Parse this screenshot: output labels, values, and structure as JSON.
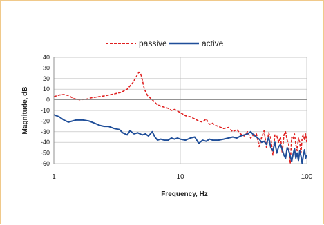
{
  "chart_data": {
    "type": "line",
    "xscale": "log",
    "xlim": [
      1,
      100
    ],
    "ylim": [
      -60,
      40
    ],
    "xlabel": "Frequency, Hz",
    "ylabel": "Magnitude, dB",
    "xticks": [
      "1",
      "10",
      "100"
    ],
    "yticks": [
      "40",
      "30",
      "20",
      "10",
      "0",
      "-10",
      "-20",
      "-30",
      "-40",
      "-50",
      "-60"
    ],
    "legend_position": "top",
    "grid": "major x and y",
    "series": [
      {
        "name": "passive",
        "color": "#e02020",
        "style": "dashed",
        "x": [
          1,
          1.1,
          1.2,
          1.3,
          1.45,
          1.6,
          1.8,
          2,
          2.3,
          2.6,
          3,
          3.4,
          3.8,
          4.2,
          4.5,
          4.7,
          4.85,
          5,
          5.2,
          5.5,
          6,
          6.5,
          7,
          7.5,
          8,
          8.5,
          9,
          10,
          11,
          12,
          13,
          14,
          15,
          16,
          17,
          18,
          19,
          20,
          22,
          24,
          26,
          28,
          30,
          32,
          34,
          36,
          38,
          40,
          42,
          44,
          46,
          48,
          50,
          52,
          54,
          56,
          58,
          60,
          62,
          64,
          66,
          68,
          70,
          72,
          74,
          76,
          78,
          80,
          82,
          84,
          86,
          88,
          90,
          92,
          94,
          96,
          98,
          100
        ],
        "y": [
          3,
          4.5,
          5,
          4,
          1,
          0,
          0.5,
          2,
          3,
          4,
          5.5,
          7,
          10,
          16,
          22,
          26,
          25,
          19,
          10,
          4,
          0,
          -4,
          -6,
          -7,
          -8,
          -10,
          -9,
          -12,
          -15,
          -16,
          -18,
          -20,
          -21,
          -18,
          -23,
          -22,
          -24,
          -25,
          -27,
          -26,
          -30,
          -28,
          -32,
          -34,
          -30,
          -36,
          -33,
          -32,
          -44,
          -35,
          -29,
          -45,
          -31,
          -36,
          -52,
          -33,
          -34,
          -40,
          -35,
          -50,
          -33,
          -30,
          -38,
          -42,
          -60,
          -35,
          -37,
          -32,
          -42,
          -48,
          -36,
          -40,
          -50,
          -35,
          -33,
          -38,
          -32,
          -40
        ]
      },
      {
        "name": "active",
        "color": "#1f4e99",
        "style": "solid",
        "x": [
          1,
          1.1,
          1.2,
          1.3,
          1.4,
          1.5,
          1.7,
          1.9,
          2.1,
          2.3,
          2.5,
          2.7,
          3,
          3.3,
          3.5,
          3.8,
          4,
          4.3,
          4.6,
          5,
          5.3,
          5.6,
          6,
          6.3,
          6.6,
          7,
          7.5,
          8,
          8.5,
          9,
          9.5,
          10,
          11,
          12,
          13,
          14,
          15,
          16,
          17,
          18,
          20,
          22,
          24,
          26,
          28,
          30,
          32,
          34,
          36,
          38,
          40,
          42,
          44,
          46,
          48,
          50,
          52,
          54,
          56,
          58,
          60,
          62,
          64,
          66,
          68,
          70,
          72,
          74,
          76,
          78,
          80,
          82,
          84,
          86,
          88,
          90,
          92,
          94,
          96,
          98,
          100
        ],
        "y": [
          -14,
          -16,
          -19,
          -21,
          -20,
          -19,
          -19,
          -20,
          -22,
          -24,
          -25,
          -25,
          -27,
          -28,
          -31,
          -33,
          -29,
          -32,
          -31,
          -33,
          -32,
          -34,
          -30,
          -35,
          -38,
          -37,
          -38,
          -38,
          -36,
          -37,
          -36,
          -37,
          -38,
          -36,
          -35,
          -41,
          -38,
          -39,
          -37,
          -38,
          -38,
          -37,
          -36,
          -35,
          -36,
          -34,
          -33,
          -32,
          -30,
          -33,
          -35,
          -37,
          -40,
          -39,
          -42,
          -35,
          -45,
          -48,
          -40,
          -50,
          -44,
          -42,
          -47,
          -52,
          -55,
          -45,
          -48,
          -53,
          -58,
          -51,
          -46,
          -55,
          -50,
          -57,
          -48,
          -53,
          -60,
          -52,
          -47,
          -55,
          -52
        ]
      }
    ]
  }
}
